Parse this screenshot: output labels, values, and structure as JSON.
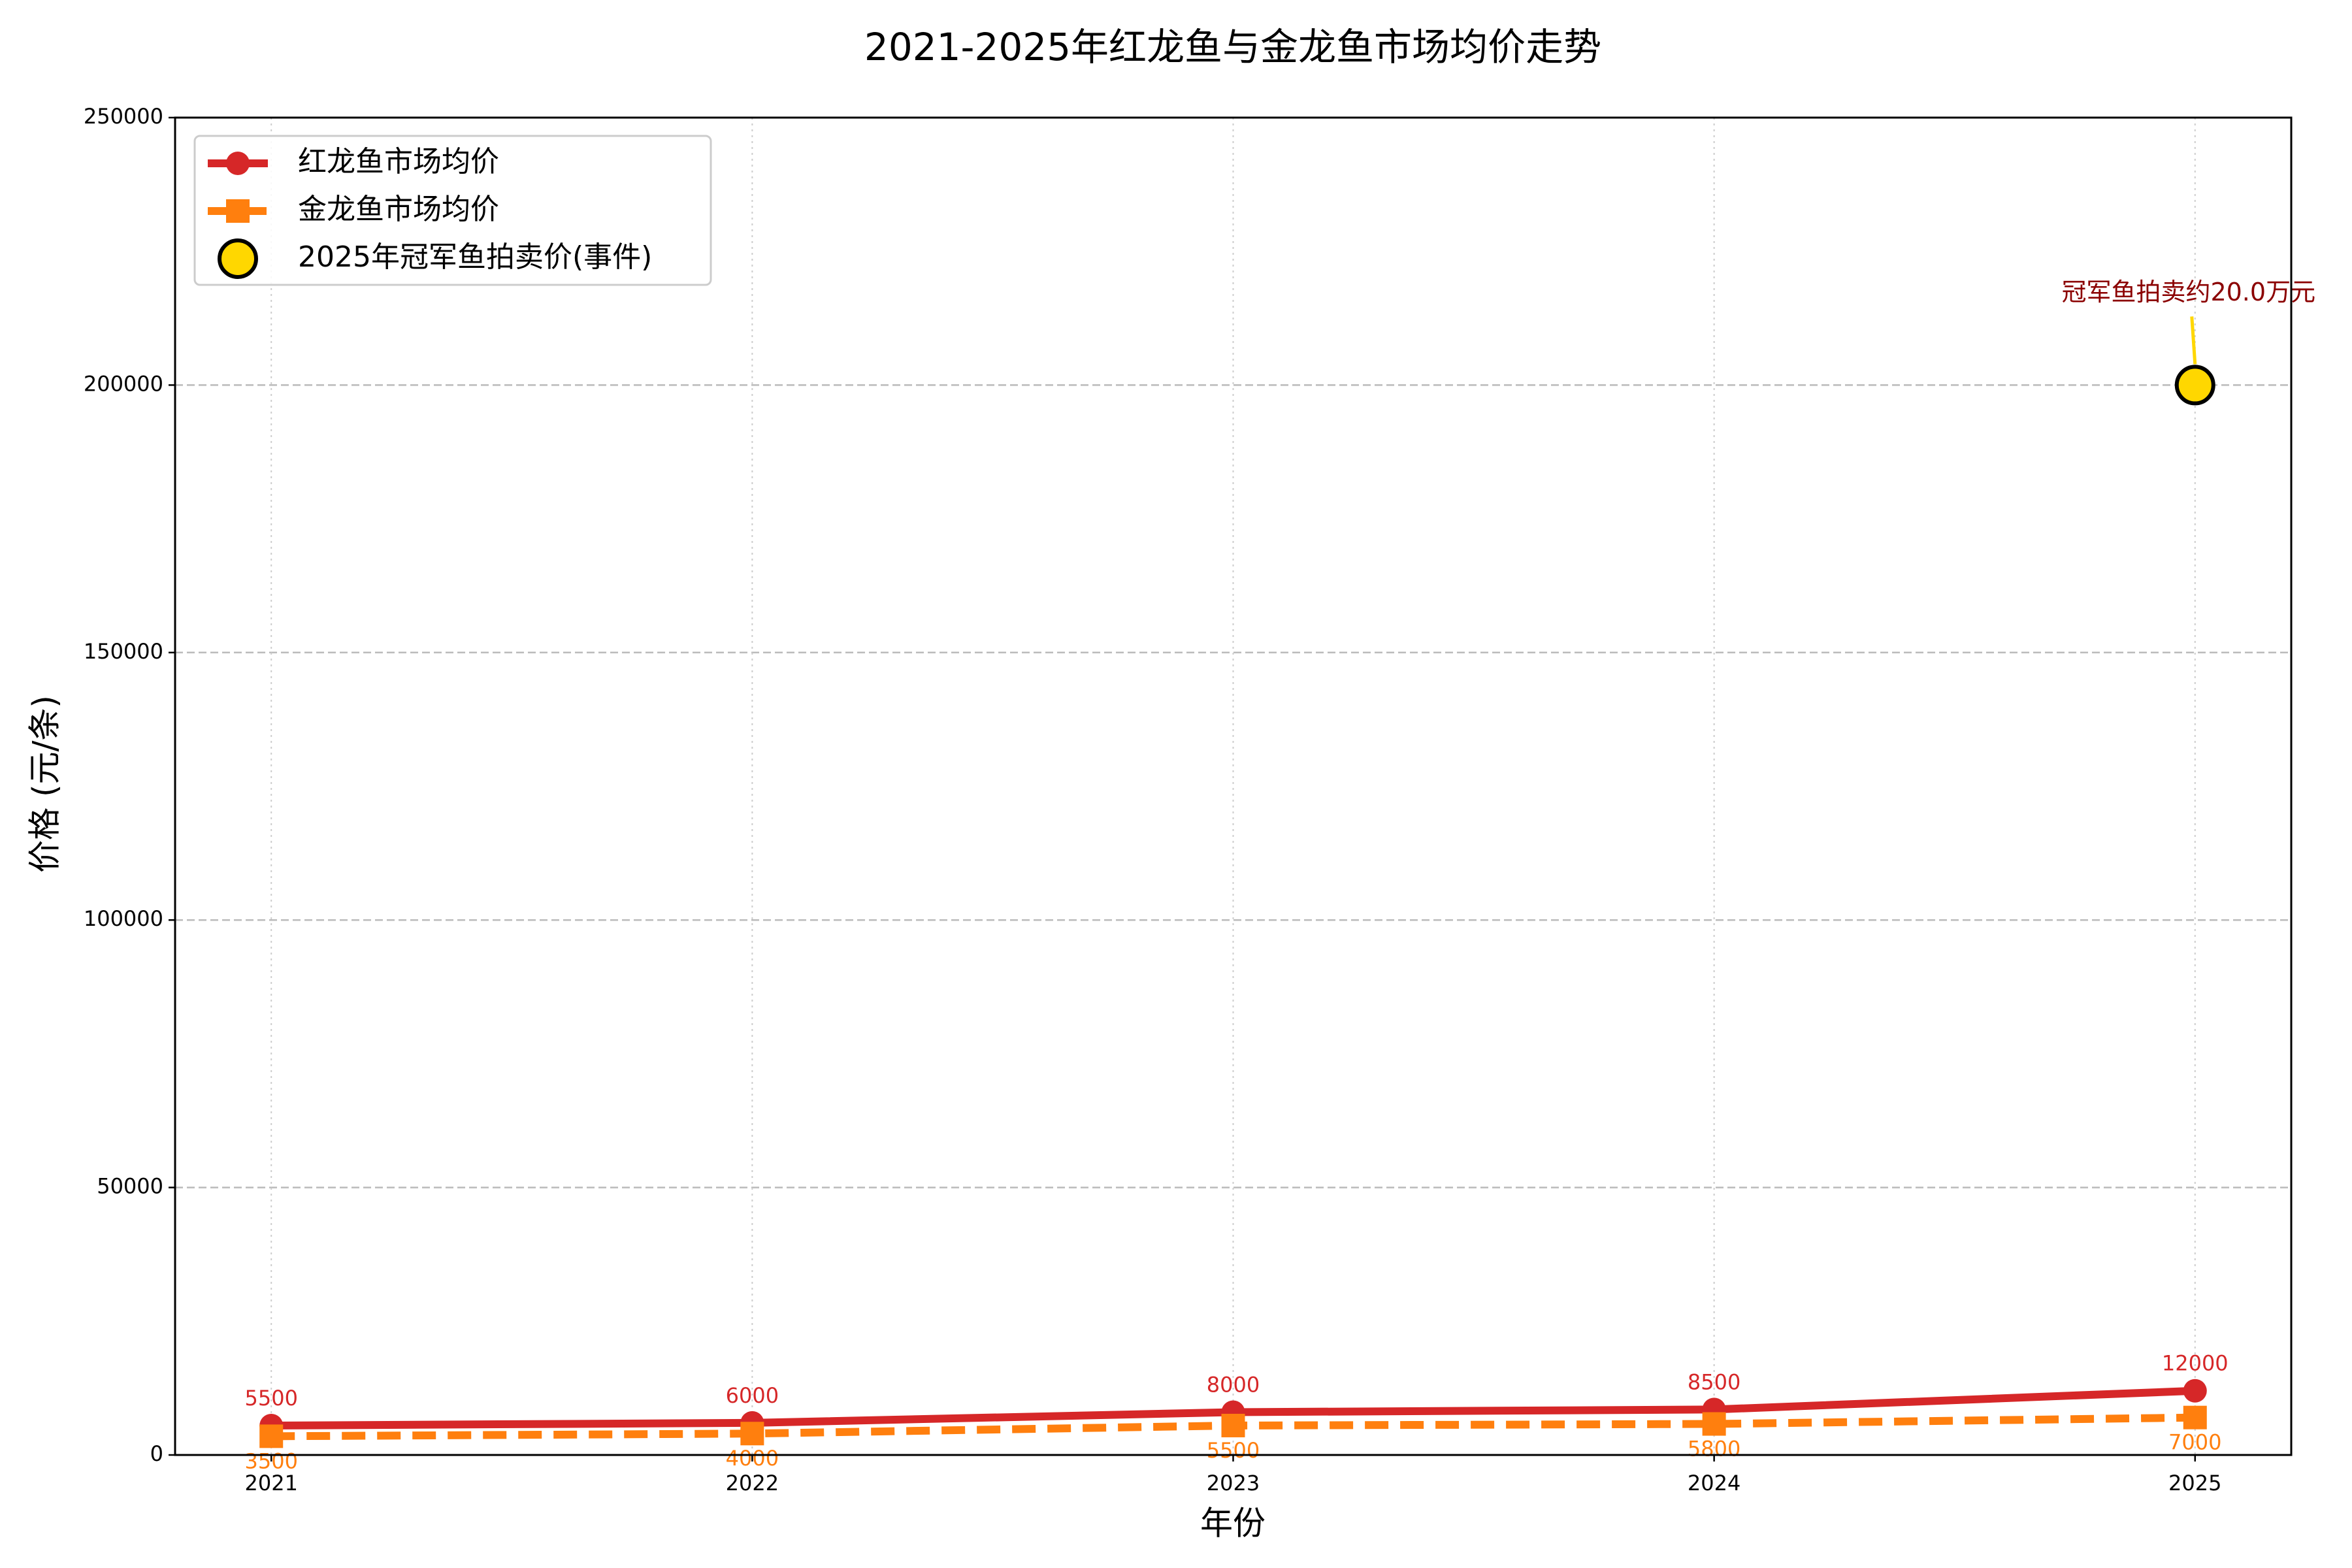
{
  "chart_data": {
    "type": "line",
    "title": "2021-2025年红龙鱼与金龙鱼市场均价走势",
    "x_label": "年份",
    "y_label": "价格 (元/条)",
    "x": [
      2021,
      2022,
      2023,
      2024,
      2025
    ],
    "series": [
      {
        "name": "红龙鱼市场均价",
        "color": "#d62728",
        "marker": "circle",
        "line_style": "solid",
        "values": [
          5500,
          6000,
          8000,
          8500,
          12000
        ]
      },
      {
        "name": "金龙鱼市场均价",
        "color": "#ff7f0e",
        "marker": "square",
        "line_style": "dashed",
        "values": [
          3500,
          4000,
          5500,
          5800,
          7000
        ]
      }
    ],
    "event": {
      "name": "2025年冠军鱼拍卖价(事件)",
      "x": 2025,
      "value": 200000,
      "color": "#ffd700",
      "annotation": "冠军鱼拍卖约20.0万元",
      "annotation_color": "#8b0000"
    },
    "xlim": [
      2020.8,
      2025.2
    ],
    "ylim": [
      0,
      250000
    ],
    "xticks": [
      2021,
      2022,
      2023,
      2024,
      2025
    ],
    "yticks": [
      0,
      50000,
      100000,
      150000,
      200000,
      250000
    ],
    "grid": true,
    "legend": "upper left"
  }
}
